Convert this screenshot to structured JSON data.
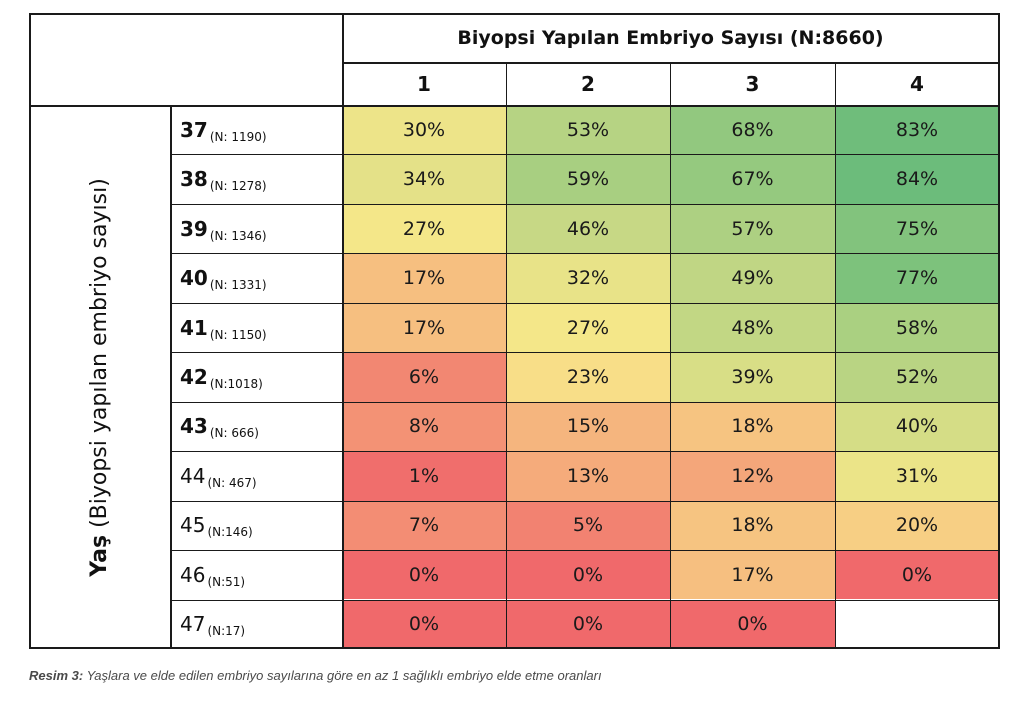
{
  "table": {
    "title": "Biyopsi Yapılan Embriyo Sayısı (N:8660)",
    "y_title_bold": "Yaş",
    "y_title_rest": " (Biyopsi yapılan embriyo sayısı)",
    "columns": [
      "1",
      "2",
      "3",
      "4"
    ],
    "rows": [
      {
        "age": "37",
        "n": "(N: 1190)",
        "bold": true
      },
      {
        "age": "38",
        "n": "(N: 1278)",
        "bold": true
      },
      {
        "age": "39",
        "n": "(N: 1346)",
        "bold": true
      },
      {
        "age": "40",
        "n": "(N: 1331)",
        "bold": true
      },
      {
        "age": "41",
        "n": "(N: 1150)",
        "bold": true
      },
      {
        "age": "42",
        "n": "(N:1018)",
        "bold": true
      },
      {
        "age": "43",
        "n": "(N: 666)",
        "bold": true
      },
      {
        "age": "44",
        "n": "(N: 467)",
        "bold": false
      },
      {
        "age": "45",
        "n": "(N:146)",
        "bold": false
      },
      {
        "age": "46",
        "n": "(N:51)",
        "bold": false
      },
      {
        "age": "47",
        "n": "(N:17)",
        "bold": false
      }
    ]
  },
  "chart_data": {
    "type": "heatmap",
    "title": "Biyopsi Yapılan Embriyo Sayısı (N:8660)",
    "xlabel": "Biyopsi Yapılan Embriyo Sayısı (N:8660)",
    "ylabel": "Yaş (Biyopsi yapılan embriyo sayısı)",
    "x_categories": [
      "1",
      "2",
      "3",
      "4"
    ],
    "y_categories": [
      "37",
      "38",
      "39",
      "40",
      "41",
      "42",
      "43",
      "44",
      "45",
      "46",
      "47"
    ],
    "unit": "%",
    "values": [
      [
        30,
        53,
        68,
        83
      ],
      [
        34,
        59,
        67,
        84
      ],
      [
        27,
        46,
        57,
        75
      ],
      [
        17,
        32,
        49,
        77
      ],
      [
        17,
        27,
        48,
        58
      ],
      [
        6,
        23,
        39,
        52
      ],
      [
        8,
        15,
        18,
        40
      ],
      [
        1,
        13,
        12,
        31
      ],
      [
        7,
        5,
        18,
        20
      ],
      [
        0,
        0,
        17,
        0
      ],
      [
        0,
        0,
        0,
        null
      ]
    ],
    "color_scale": [
      "#f0696b",
      "#f9d98b",
      "#65ba78"
    ]
  },
  "caption": {
    "label": "Resim 3:",
    "text": " Yaşlara ve elde edilen embriyo sayılarına göre en az 1 sağlıklı embriyo elde etme oranları"
  }
}
